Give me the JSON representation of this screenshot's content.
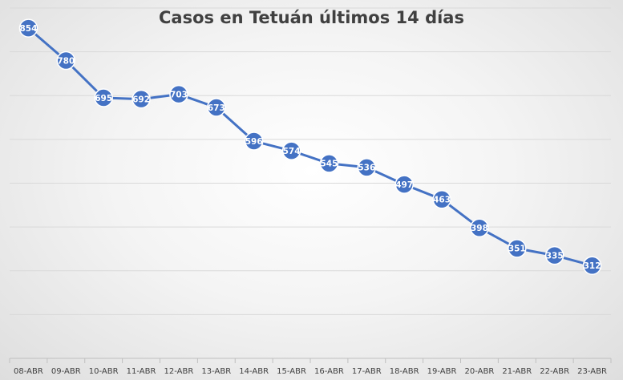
{
  "chart_data": {
    "type": "line",
    "title": "Casos en Tetuán últimos 14 días",
    "categories": [
      "08-ABR",
      "09-ABR",
      "10-ABR",
      "11-ABR",
      "12-ABR",
      "13-ABR",
      "14-ABR",
      "15-ABR",
      "16-ABR",
      "17-ABR",
      "18-ABR",
      "19-ABR",
      "20-ABR",
      "21-ABR",
      "22-ABR",
      "23-ABR"
    ],
    "series": [
      {
        "values": [
          854,
          780,
          695,
          692,
          703,
          673,
          596,
          574,
          545,
          536,
          497,
          463,
          398,
          351,
          335,
          312
        ]
      }
    ],
    "ylim": [
      100,
      900
    ],
    "y_gridlines": [
      100,
      200,
      300,
      400,
      500,
      600,
      700,
      800,
      900
    ],
    "grid": true,
    "legend": "none",
    "colors": {
      "line": "#4472c4",
      "marker_stroke": "#ffffff",
      "grid": "#d9d9d9",
      "axis": "#bfbfbf"
    }
  }
}
